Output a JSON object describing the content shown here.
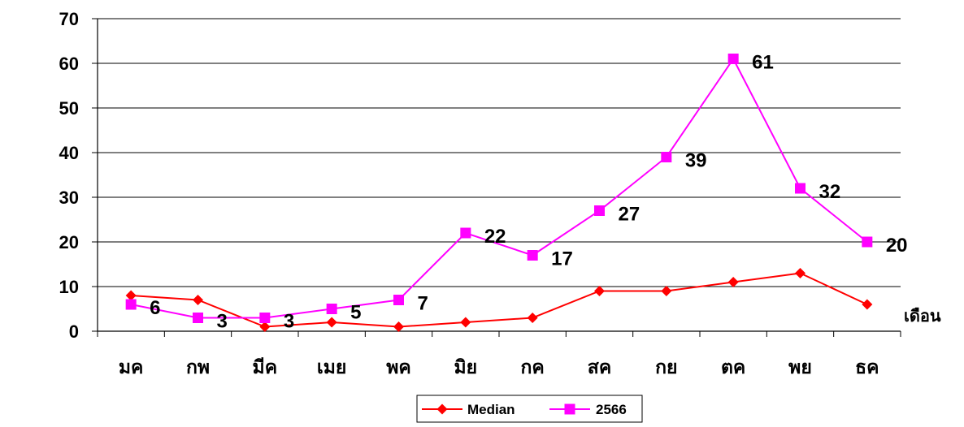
{
  "chart_data": {
    "type": "line",
    "title": "",
    "xlabel": "เดือน",
    "ylabel": "",
    "ylim": [
      0,
      70
    ],
    "yticks": [
      0,
      10,
      20,
      30,
      40,
      50,
      60,
      70
    ],
    "grid": true,
    "legend_position": "bottom",
    "categories": [
      "มค",
      "กพ",
      "มีค",
      "เมย",
      "พค",
      "มิย",
      "กค",
      "สค",
      "กย",
      "ตค",
      "พย",
      "ธค"
    ],
    "series": [
      {
        "name": "Median",
        "color": "#ff0000",
        "marker": "diamond",
        "values": [
          8,
          7,
          1,
          2,
          1,
          2,
          3,
          9,
          9,
          11,
          13,
          6
        ],
        "show_labels": false
      },
      {
        "name": "2566",
        "color": "#ff00ff",
        "marker": "square",
        "values": [
          6,
          3,
          3,
          5,
          7,
          22,
          17,
          27,
          39,
          61,
          32,
          20
        ],
        "show_labels": true
      }
    ]
  }
}
